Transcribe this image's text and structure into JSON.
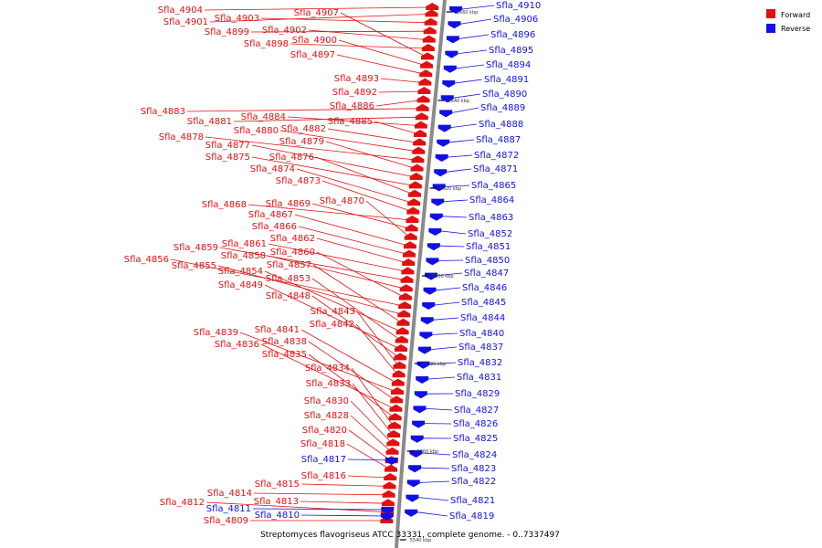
{
  "legend": {
    "forward_label": "Forward",
    "reverse_label": "Reverse",
    "forward_color": "#e11010",
    "reverse_color": "#1010e6"
  },
  "caption": "Streptomyces flavogriseus ATCC 33331, complete genome. - 0..7337497",
  "ticks": [
    "5660 kbp",
    "5640 kbp",
    "5620 kbp",
    "5600 kbp",
    "5580 kbp",
    "5560 kbp",
    "5540 kbp"
  ],
  "forward_genes": [
    "Sfla_4904",
    "Sfla_4901",
    "Sfla_4903",
    "Sfla_4899",
    "Sfla_4902",
    "Sfla_4898",
    "Sfla_4907",
    "Sfla_4900",
    "Sfla_4897",
    "Sfla_4893",
    "Sfla_4892",
    "Sfla_4886",
    "Sfla_4883",
    "Sfla_4881",
    "Sfla_4884",
    "Sfla_4885",
    "Sfla_4882",
    "Sfla_4880",
    "Sfla_4878",
    "Sfla_4879",
    "Sfla_4877",
    "Sfla_4875",
    "Sfla_4876",
    "Sfla_4874",
    "Sfla_4873",
    "Sfla_4868",
    "Sfla_4869",
    "Sfla_4870",
    "Sfla_4867",
    "Sfla_4866",
    "Sfla_4862",
    "Sfla_4861",
    "Sfla_4859",
    "Sfla_4858",
    "Sfla_4860",
    "Sfla_4856",
    "Sfla_4855",
    "Sfla_4857",
    "Sfla_4854",
    "Sfla_4853",
    "Sfla_4849",
    "Sfla_4848",
    "Sfla_4843",
    "Sfla_4842",
    "Sfla_4841",
    "Sfla_4839",
    "Sfla_4838",
    "Sfla_4836",
    "Sfla_4835",
    "Sfla_4834",
    "Sfla_4833",
    "Sfla_4830",
    "Sfla_4828",
    "Sfla_4820",
    "Sfla_4818",
    "Sfla_4816",
    "Sfla_4815",
    "Sfla_4814",
    "Sfla_4813",
    "Sfla_4812",
    "Sfla_4809"
  ],
  "reverse_genes_left": [
    "Sfla_4817",
    "Sfla_4811",
    "Sfla_4810"
  ],
  "reverse_genes_right": [
    "Sfla_4910",
    "Sfla_4906",
    "Sfla_4896",
    "Sfla_4895",
    "Sfla_4894",
    "Sfla_4891",
    "Sfla_4890",
    "Sfla_4889",
    "Sfla_4888",
    "Sfla_4887",
    "Sfla_4872",
    "Sfla_4871",
    "Sfla_4865",
    "Sfla_4864",
    "Sfla_4863",
    "Sfla_4852",
    "Sfla_4851",
    "Sfla_4850",
    "Sfla_4847",
    "Sfla_4846",
    "Sfla_4845",
    "Sfla_4844",
    "Sfla_4840",
    "Sfla_4837",
    "Sfla_4832",
    "Sfla_4831",
    "Sfla_4829",
    "Sfla_4827",
    "Sfla_4826",
    "Sfla_4825",
    "Sfla_4824",
    "Sfla_4823",
    "Sfla_4822",
    "Sfla_4821",
    "Sfla_4819"
  ]
}
